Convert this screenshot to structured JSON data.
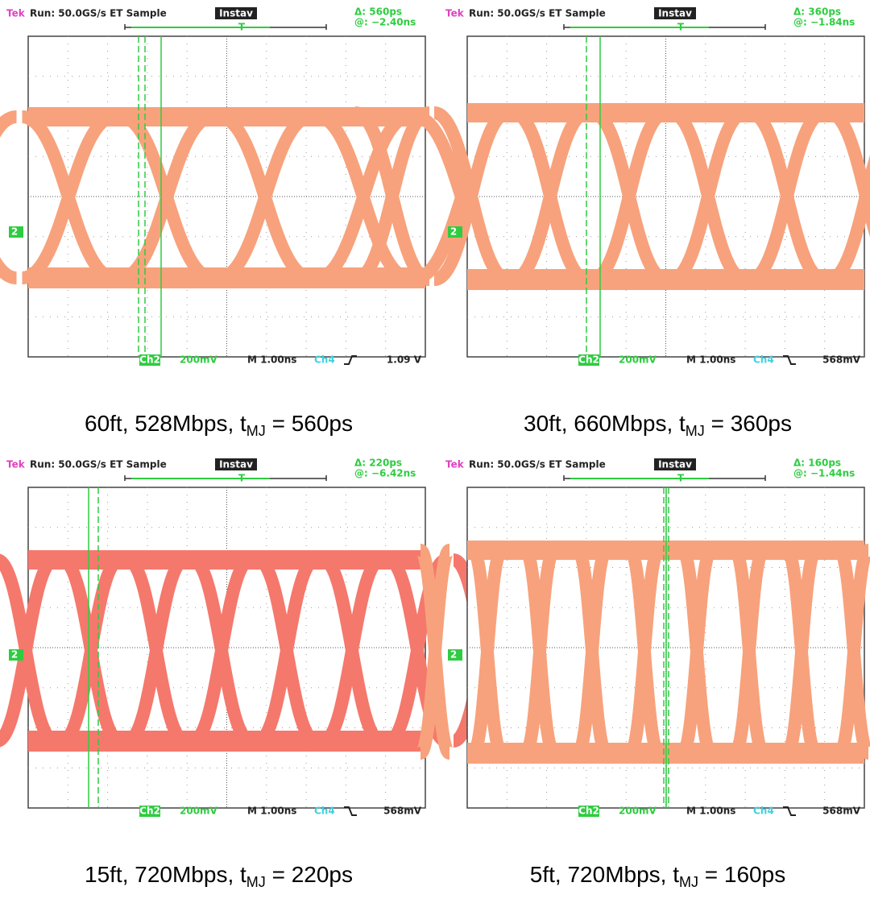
{
  "panels": [
    {
      "brand": "Tek",
      "status": "Run: 50.0GS/s ET Sample",
      "mode": "Instav",
      "delta": "Δ: 560ps",
      "at": "@: −2.40ns",
      "channel_marker": "2",
      "trigger": "T",
      "ch2": "Ch2",
      "scale": "200mV",
      "time": "M 1.00ns",
      "ch4": "Ch4",
      "trigger_level": "1.09 V",
      "caption": {
        "main": "60ft, 528Mbps, t",
        "sub": "MJ",
        "tail": " = 560ps"
      }
    },
    {
      "brand": "Tek",
      "status": "Run: 50.0GS/s ET Sample",
      "mode": "Instav",
      "delta": "Δ: 360ps",
      "at": "@: −1.84ns",
      "channel_marker": "2",
      "trigger": "T",
      "ch2": "Ch2",
      "scale": "200mV",
      "time": "M 1.00ns",
      "ch4": "Ch4",
      "trigger_level": "568mV",
      "caption": {
        "main": "30ft, 660Mbps, t",
        "sub": "MJ",
        "tail": " = 360ps"
      }
    },
    {
      "brand": "Tek",
      "status": "Run: 50.0GS/s ET Sample",
      "mode": "Instav",
      "delta": "Δ: 220ps",
      "at": "@: −6.42ns",
      "channel_marker": "2",
      "trigger": "T",
      "ch2": "Ch2",
      "scale": "200mV",
      "time": "M 1.00ns",
      "ch4": "Ch4",
      "trigger_level": "568mV",
      "caption": {
        "main": "15ft, 720Mbps, t",
        "sub": "MJ",
        "tail": " = 220ps"
      }
    },
    {
      "brand": "Tek",
      "status": "Run: 50.0GS/s ET Sample",
      "mode": "Instav",
      "delta": "Δ: 160ps",
      "at": "@: −1.44ns",
      "channel_marker": "2",
      "trigger": "T",
      "ch2": "Ch2",
      "scale": "200mV",
      "time": "M 1.00ns",
      "ch4": "Ch4",
      "trigger_level": "568mV",
      "caption": {
        "main": "5ft, 720Mbps, t",
        "sub": "MJ",
        "tail": " = 160ps"
      }
    }
  ]
}
